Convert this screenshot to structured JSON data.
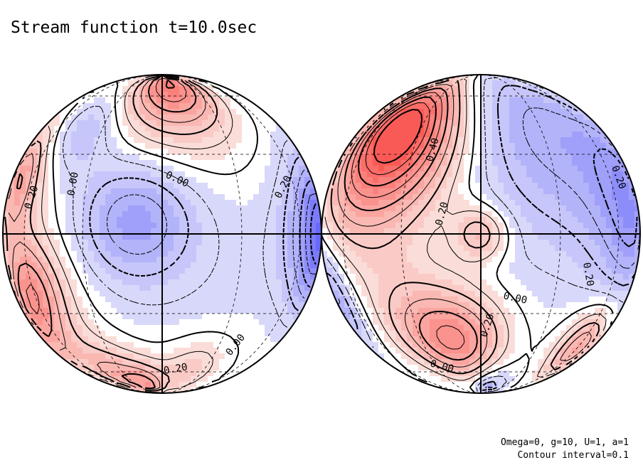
{
  "chart_data": {
    "type": "contour",
    "title": "Stream function t=10.0sec",
    "projection": "orthographic",
    "panels": [
      "western-hemisphere",
      "eastern-hemisphere"
    ],
    "contour_interval": 0.1,
    "contour_labels": [
      "0.20",
      "0.00",
      "0.00",
      "0.20",
      "0.20",
      "0.00",
      "0.20",
      "0.40",
      "0.20",
      "0.00",
      "0.20",
      "0.00",
      "0.20"
    ],
    "parameters": "Omega=0, g=10, U=1, a=1",
    "interval_label": "Contour interval=0.1",
    "colors": {
      "positive": "#e84848",
      "negative": "#5a5ae8",
      "zero": "#ffffff",
      "line": "#000000"
    },
    "blobs": [
      {
        "hemisphere": 0,
        "lon": 8,
        "lat": 70,
        "value": 0.62,
        "sigma": 22
      },
      {
        "hemisphere": 0,
        "lon": -40,
        "lat": 40,
        "value": -0.22,
        "sigma": 14
      },
      {
        "hemisphere": 0,
        "lon": 55,
        "lat": 70,
        "value": -0.05,
        "sigma": 20
      },
      {
        "hemisphere": 0,
        "lon": -10,
        "lat": 5,
        "value": -0.34,
        "sigma": 15
      },
      {
        "hemisphere": 0,
        "lon": 80,
        "lat": 0,
        "value": -0.72,
        "sigma": 18
      },
      {
        "hemisphere": 0,
        "lon": -72,
        "lat": 20,
        "value": 0.42,
        "sigma": 14
      },
      {
        "hemisphere": 0,
        "lon": -60,
        "lat": -20,
        "value": 0.45,
        "sigma": 14
      },
      {
        "hemisphere": 0,
        "lon": -75,
        "lat": -40,
        "value": 0.28,
        "sigma": 14
      },
      {
        "hemisphere": 0,
        "lon": -40,
        "lat": -62,
        "value": 0.32,
        "sigma": 15
      },
      {
        "hemisphere": 0,
        "lon": -15,
        "lat": -72,
        "value": 0.42,
        "sigma": 13
      },
      {
        "hemisphere": 0,
        "lon": 20,
        "lat": -60,
        "value": 0.22,
        "sigma": 14
      },
      {
        "hemisphere": 0,
        "lon": 10,
        "lat": -20,
        "value": -0.08,
        "sigma": 30
      },
      {
        "hemisphere": 1,
        "lon": -40,
        "lat": 42,
        "value": 0.8,
        "sigma": 20
      },
      {
        "hemisphere": 1,
        "lon": -50,
        "lat": 20,
        "value": 0.25,
        "sigma": 25
      },
      {
        "hemisphere": 1,
        "lon": 0,
        "lat": 0,
        "value": 0.32,
        "sigma": 7
      },
      {
        "hemisphere": 1,
        "lon": -10,
        "lat": -42,
        "value": 0.48,
        "sigma": 15
      },
      {
        "hemisphere": 1,
        "lon": -30,
        "lat": -35,
        "value": 0.2,
        "sigma": 15
      },
      {
        "hemisphere": 1,
        "lon": 30,
        "lat": 40,
        "value": -0.32,
        "sigma": 30
      },
      {
        "hemisphere": 1,
        "lon": 75,
        "lat": 20,
        "value": -0.3,
        "sigma": 20
      },
      {
        "hemisphere": 1,
        "lon": 70,
        "lat": -5,
        "value": -0.22,
        "sigma": 18
      },
      {
        "hemisphere": 1,
        "lon": 60,
        "lat": -45,
        "value": 0.42,
        "sigma": 12
      },
      {
        "hemisphere": 1,
        "lon": -80,
        "lat": -25,
        "value": -0.34,
        "sigma": 14
      },
      {
        "hemisphere": 1,
        "lon": 10,
        "lat": -80,
        "value": -0.38,
        "sigma": 12
      },
      {
        "hemisphere": 1,
        "lon": 5,
        "lat": -25,
        "value": -0.05,
        "sigma": 25
      }
    ]
  }
}
